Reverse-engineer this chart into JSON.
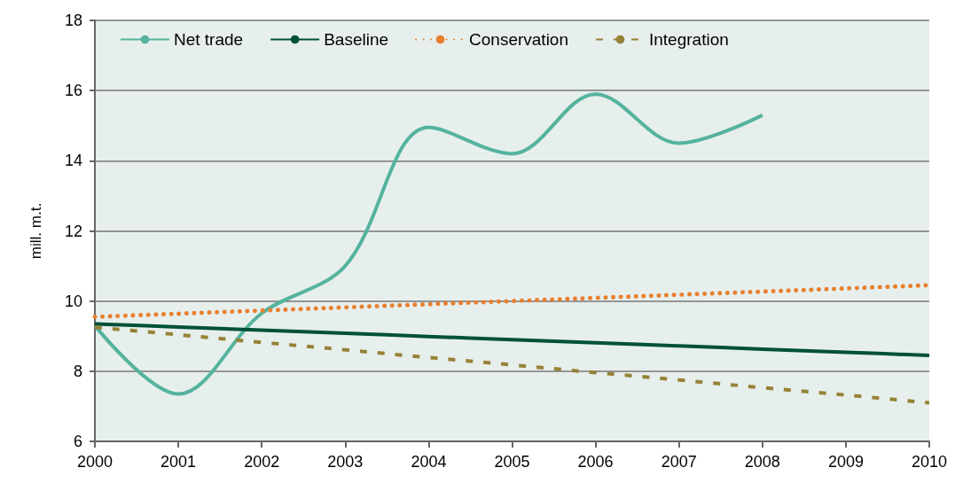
{
  "chart_data": {
    "type": "line",
    "ylabel": "mill. m.t.",
    "categories": [
      "2000",
      "2001",
      "2002",
      "2003",
      "2004",
      "2005",
      "2006",
      "2007",
      "2008",
      "2009",
      "2010"
    ],
    "series": [
      {
        "name": "Net trade",
        "color": "#55b39e",
        "line_style": "solid",
        "values": [
          9.3,
          7.35,
          9.65,
          11.0,
          14.95,
          14.2,
          15.9,
          14.5,
          15.3,
          null,
          null
        ]
      },
      {
        "name": "Baseline",
        "color": "#00503a",
        "line_style": "solid",
        "values": [
          9.35,
          9.26,
          9.17,
          9.08,
          8.99,
          8.9,
          8.81,
          8.72,
          8.63,
          8.54,
          8.45
        ]
      },
      {
        "name": "Conservation",
        "color": "#e87f2e",
        "line_style": "dotted",
        "values": [
          9.55,
          9.64,
          9.73,
          9.82,
          9.91,
          10.0,
          10.09,
          10.18,
          10.27,
          10.36,
          10.45
        ]
      },
      {
        "name": "Integration",
        "color": "#968236",
        "line_style": "dashed",
        "values": [
          9.25,
          9.04,
          8.82,
          8.61,
          8.39,
          8.18,
          7.96,
          7.75,
          7.53,
          7.32,
          7.1
        ]
      }
    ],
    "ylim": [
      6,
      18
    ],
    "yticks": [
      6,
      8,
      10,
      12,
      14,
      16,
      18
    ],
    "grid": "y",
    "legend": "top left",
    "marker": "none"
  }
}
